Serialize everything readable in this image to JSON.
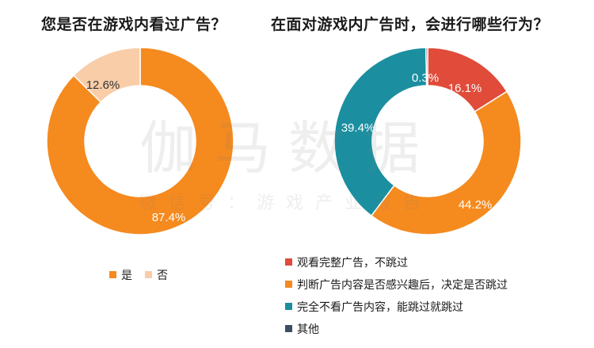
{
  "chart_data": [
    {
      "type": "pie",
      "title": "您是否在游戏内看过广告？",
      "slices": [
        {
          "label": "是",
          "value": 87.4,
          "display": "87.4%",
          "color": "#F58A1F"
        },
        {
          "label": "否",
          "value": 12.6,
          "display": "12.6%",
          "color": "#F8CDA8"
        }
      ],
      "legend": "bottom"
    },
    {
      "type": "pie",
      "title": "在面对游戏内广告时，会进行哪些行为？",
      "slices": [
        {
          "label": "观看完整广告，不跳过",
          "value": 16.1,
          "display": "16.1%",
          "color": "#E04B3A"
        },
        {
          "label": "判断广告内容是否感兴趣后，决定是否跳过",
          "value": 44.2,
          "display": "44.2%",
          "color": "#F58A1F"
        },
        {
          "label": "完全不看广告内容，能跳过就跳过",
          "value": 39.4,
          "display": "39.4%",
          "color": "#1B8FA0"
        },
        {
          "label": "其他",
          "value": 0.3,
          "display": "0.3%",
          "color": "#3D4E63"
        }
      ],
      "legend": "bottom"
    }
  ],
  "watermark": {
    "main": "伽马数据",
    "sub": "微信号：游戏产业报告"
  }
}
